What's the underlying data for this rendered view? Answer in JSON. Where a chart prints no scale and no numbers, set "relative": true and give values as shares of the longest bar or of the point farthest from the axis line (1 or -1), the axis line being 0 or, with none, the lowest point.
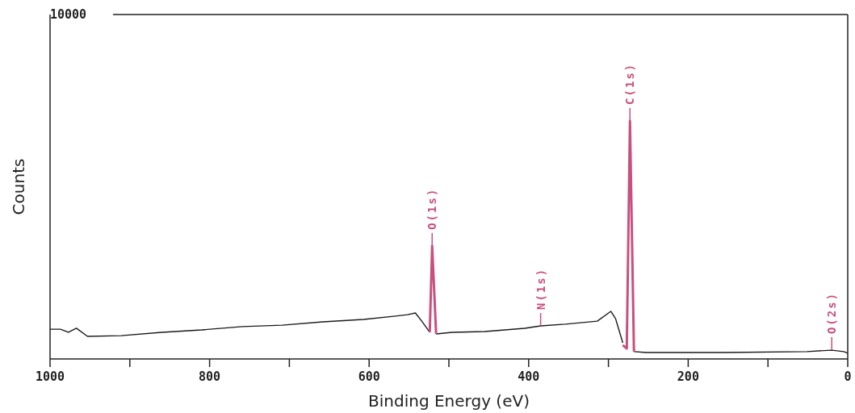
{
  "chart_data": {
    "type": "line",
    "xlabel": "Binding Energy (eV)",
    "ylabel": "Counts",
    "relative": true,
    "xlim": [
      1000,
      0
    ],
    "xticks": [
      1000,
      {
        "value": 900,
        "label": null
      },
      800,
      {
        "value": 700,
        "label": null
      },
      600,
      {
        "value": 500,
        "label": null
      },
      400,
      {
        "value": 300,
        "label": null
      },
      200,
      {
        "value": 100,
        "label": null
      },
      0
    ],
    "series": [
      {
        "color": "#1a1a1a",
        "x": [
          1000,
          987,
          977,
          967,
          953,
          911,
          860,
          810,
          759,
          709,
          658,
          607,
          567,
          552,
          542,
          534,
          524,
          521,
          516,
          496,
          455,
          405,
          385,
          354,
          314,
          297,
          291,
          282,
          277,
          273,
          268,
          253,
          152,
          51,
          20,
          5,
          0
        ],
        "values": [
          0.125,
          0.125,
          0.112,
          0.129,
          0.095,
          0.098,
          0.112,
          0.122,
          0.136,
          0.142,
          0.156,
          0.166,
          0.18,
          0.186,
          0.193,
          0.159,
          0.112,
          null,
          0.105,
          0.112,
          0.115,
          0.129,
          0.139,
          0.146,
          0.159,
          0.2,
          0.169,
          0.068,
          null,
          null,
          0.031,
          0.027,
          0.027,
          0.031,
          0.037,
          0.031,
          0.024
        ]
      },
      {
        "color": "#c8507e",
        "x": [
          524,
          521,
          516,
          400,
          282,
          277,
          273,
          268
        ],
        "values": [
          0.112,
          0.475,
          0.105,
          null,
          0.058,
          0.044,
          1.0,
          0.031
        ]
      }
    ],
    "annotations": [
      "10000",
      {
        "text": "O(1s)",
        "x": 521,
        "y": 0.475
      },
      {
        "text": "N(1s)",
        "x": 385,
        "y": 0.139
      },
      {
        "text": "C(1s)",
        "x": 273,
        "y": 1.0
      },
      {
        "text": "O(2s)",
        "x": 20,
        "y": 0.037
      }
    ]
  }
}
